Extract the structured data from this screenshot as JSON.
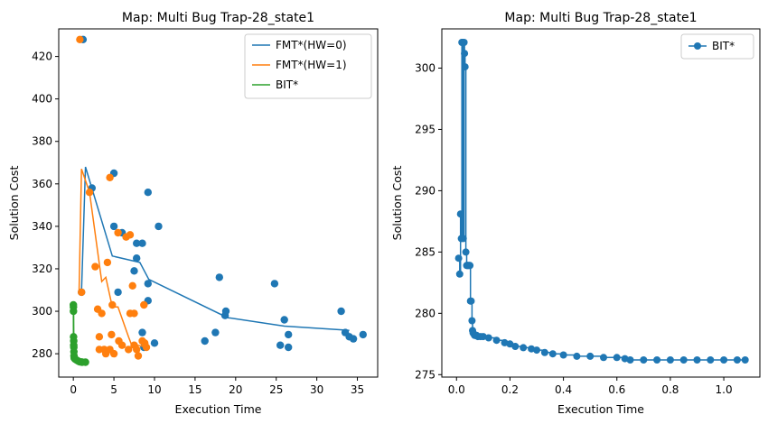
{
  "chart_data": [
    {
      "type": "scatter",
      "title": "Map: Multi Bug Trap-28_state1",
      "xlabel": "Execution Time",
      "ylabel": "Solution Cost",
      "xlim": [
        -1.8,
        37.5
      ],
      "ylim": [
        269,
        433
      ],
      "xticks": [
        0,
        5,
        10,
        15,
        20,
        25,
        30,
        35
      ],
      "yticks": [
        280,
        300,
        320,
        340,
        360,
        380,
        400,
        420
      ],
      "legend_position": "top-right",
      "series": [
        {
          "name": "FMT*(HW=0)",
          "color": "#1f77b4",
          "line_x": [
            1.0,
            1.5,
            4.8,
            8.2,
            9.3,
            19.0,
            26.0,
            34.0
          ],
          "line_y": [
            309,
            368,
            326,
            323,
            315,
            297,
            293,
            291
          ],
          "points": [
            [
              1.0,
              309
            ],
            [
              1.2,
              428
            ],
            [
              2.3,
              358
            ],
            [
              5.0,
              365
            ],
            [
              5.0,
              340
            ],
            [
              5.5,
              309
            ],
            [
              6.0,
              337
            ],
            [
              7.5,
              319
            ],
            [
              7.8,
              325
            ],
            [
              7.8,
              332
            ],
            [
              8.5,
              332
            ],
            [
              9.2,
              356
            ],
            [
              9.2,
              313
            ],
            [
              9.2,
              305
            ],
            [
              10.5,
              340
            ],
            [
              10.0,
              285
            ],
            [
              8.7,
              283
            ],
            [
              8.5,
              290
            ],
            [
              16.2,
              286
            ],
            [
              17.5,
              290
            ],
            [
              18.0,
              316
            ],
            [
              18.7,
              298
            ],
            [
              18.8,
              300
            ],
            [
              24.8,
              313
            ],
            [
              25.5,
              284
            ],
            [
              26.0,
              296
            ],
            [
              26.5,
              289
            ],
            [
              26.5,
              283
            ],
            [
              33.0,
              300
            ],
            [
              33.5,
              290
            ],
            [
              34.0,
              288
            ],
            [
              34.5,
              287
            ],
            [
              35.7,
              289
            ]
          ]
        },
        {
          "name": "FMT*(HW=1)",
          "color": "#ff7f0e",
          "line_x": [
            0.7,
            1.0,
            2.0,
            3.5,
            4.0,
            4.8,
            5.5,
            6.8,
            7.2,
            8.0,
            9.0
          ],
          "line_y": [
            309,
            367,
            356,
            314,
            316,
            302,
            302,
            288,
            284,
            284,
            283
          ],
          "points": [
            [
              0.8,
              428
            ],
            [
              1.0,
              309
            ],
            [
              2.0,
              356
            ],
            [
              2.7,
              321
            ],
            [
              3.0,
              301
            ],
            [
              3.2,
              288
            ],
            [
              3.2,
              282
            ],
            [
              3.5,
              299
            ],
            [
              3.8,
              282
            ],
            [
              4.0,
              280
            ],
            [
              4.2,
              323
            ],
            [
              4.5,
              363
            ],
            [
              4.5,
              282
            ],
            [
              4.7,
              289
            ],
            [
              4.8,
              303
            ],
            [
              5.0,
              280
            ],
            [
              5.5,
              337
            ],
            [
              5.6,
              286
            ],
            [
              6.0,
              284
            ],
            [
              6.5,
              335
            ],
            [
              6.8,
              282
            ],
            [
              7.0,
              336
            ],
            [
              7.0,
              299
            ],
            [
              7.3,
              312
            ],
            [
              7.5,
              299
            ],
            [
              7.5,
              284
            ],
            [
              7.8,
              282
            ],
            [
              8.0,
              279
            ],
            [
              8.5,
              286
            ],
            [
              8.7,
              303
            ],
            [
              8.8,
              285
            ],
            [
              9.0,
              283
            ]
          ]
        },
        {
          "name": "BIT*",
          "color": "#2ca02c",
          "line_x": [
            0.0,
            0.02,
            0.04,
            0.06,
            0.08,
            0.1,
            0.15,
            0.3,
            0.6,
            1.08
          ],
          "line_y": [
            302,
            288,
            300,
            286,
            284,
            279,
            278,
            277,
            276.5,
            276
          ],
          "points": [
            [
              0.0,
              303
            ],
            [
              0.02,
              302
            ],
            [
              0.02,
              300
            ],
            [
              0.03,
              288
            ],
            [
              0.05,
              286
            ],
            [
              0.05,
              284
            ],
            [
              0.06,
              283
            ],
            [
              0.07,
              281
            ],
            [
              0.08,
              279
            ],
            [
              0.1,
              278
            ],
            [
              0.2,
              277.5
            ],
            [
              0.4,
              277
            ],
            [
              0.6,
              276.5
            ],
            [
              0.8,
              276.2
            ],
            [
              1.0,
              276.1
            ],
            [
              1.5,
              276
            ],
            [
              1.08,
              276
            ]
          ]
        }
      ]
    },
    {
      "type": "line",
      "title": "Map: Multi Bug Trap-28_state1",
      "xlabel": "Execution Time",
      "ylabel": "Solution Cost",
      "xlim": [
        -0.055,
        1.135
      ],
      "ylim": [
        274.8,
        303.2
      ],
      "xticks": [
        0.0,
        0.2,
        0.4,
        0.6,
        0.8,
        1.0
      ],
      "yticks": [
        275,
        280,
        285,
        290,
        295,
        300
      ],
      "legend_position": "top-right",
      "series": [
        {
          "name": "BIT*",
          "color": "#1f77b4",
          "markers": true,
          "x": [
            0.008,
            0.012,
            0.015,
            0.018,
            0.02,
            0.022,
            0.025,
            0.028,
            0.03,
            0.032,
            0.035,
            0.038,
            0.04,
            0.042,
            0.045,
            0.048,
            0.05,
            0.052,
            0.055,
            0.058,
            0.06,
            0.062,
            0.065,
            0.068,
            0.07,
            0.075,
            0.08,
            0.09,
            0.1,
            0.12,
            0.15,
            0.18,
            0.2,
            0.22,
            0.25,
            0.28,
            0.3,
            0.33,
            0.36,
            0.4,
            0.45,
            0.5,
            0.55,
            0.6,
            0.63,
            0.65,
            0.7,
            0.75,
            0.8,
            0.85,
            0.9,
            0.95,
            1.0,
            1.05,
            1.08
          ],
          "y": [
            284.5,
            283.2,
            288.1,
            286.1,
            302.1,
            302.1,
            286.1,
            302.1,
            301.2,
            300.1,
            285.0,
            283.9,
            283.9,
            283.9,
            283.9,
            283.9,
            283.9,
            281.0,
            281.0,
            279.4,
            278.6,
            278.4,
            278.3,
            278.2,
            278.2,
            278.2,
            278.1,
            278.1,
            278.1,
            278.0,
            277.8,
            277.6,
            277.5,
            277.3,
            277.2,
            277.1,
            277.0,
            276.8,
            276.7,
            276.6,
            276.5,
            276.5,
            276.4,
            276.4,
            276.3,
            276.2,
            276.2,
            276.2,
            276.2,
            276.2,
            276.2,
            276.2,
            276.2,
            276.2,
            276.2
          ]
        }
      ]
    }
  ]
}
